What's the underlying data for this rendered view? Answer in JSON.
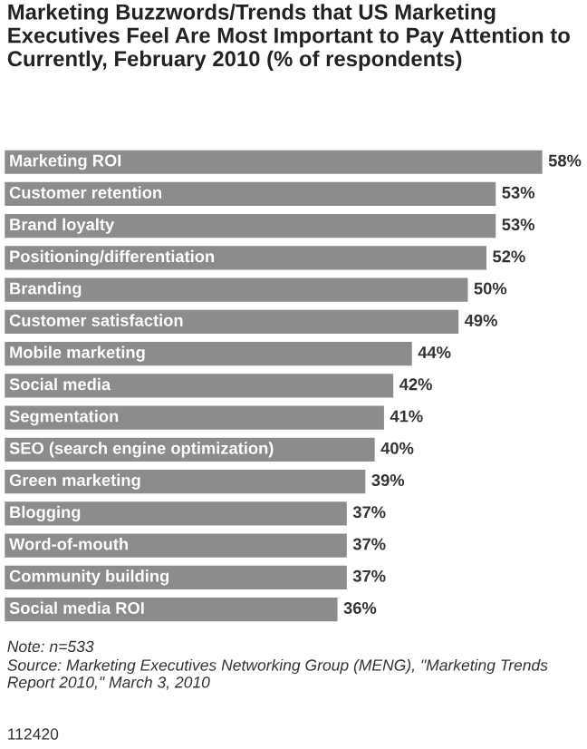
{
  "chart_data": {
    "type": "bar",
    "orientation": "horizontal",
    "title": "Marketing Buzzwords/Trends that US Marketing Executives Feel Are Most Important to Pay Attention to Currently, February 2010 (% of respondents)",
    "categories": [
      "Marketing ROI",
      "Customer retention",
      "Brand loyalty",
      "Positioning/differentiation",
      "Branding",
      "Customer satisfaction",
      "Mobile marketing",
      "Social media",
      "Segmentation",
      "SEO (search engine optimization)",
      "Green marketing",
      "Blogging",
      "Word-of-mouth",
      "Community building",
      "Social media ROI"
    ],
    "values": [
      58,
      53,
      53,
      52,
      50,
      49,
      44,
      42,
      41,
      40,
      39,
      37,
      37,
      37,
      36
    ],
    "value_labels": [
      "58%",
      "53%",
      "53%",
      "52%",
      "50%",
      "49%",
      "44%",
      "42%",
      "41%",
      "40%",
      "39%",
      "37%",
      "37%",
      "37%",
      "36%"
    ],
    "color": "#8c8c8c",
    "annotations": [
      "Note: n=533",
      "Source: Marketing Executives Networking Group (MENG), \"Marketing Trends Report 2010,\" March 3, 2010",
      "112420"
    ]
  }
}
